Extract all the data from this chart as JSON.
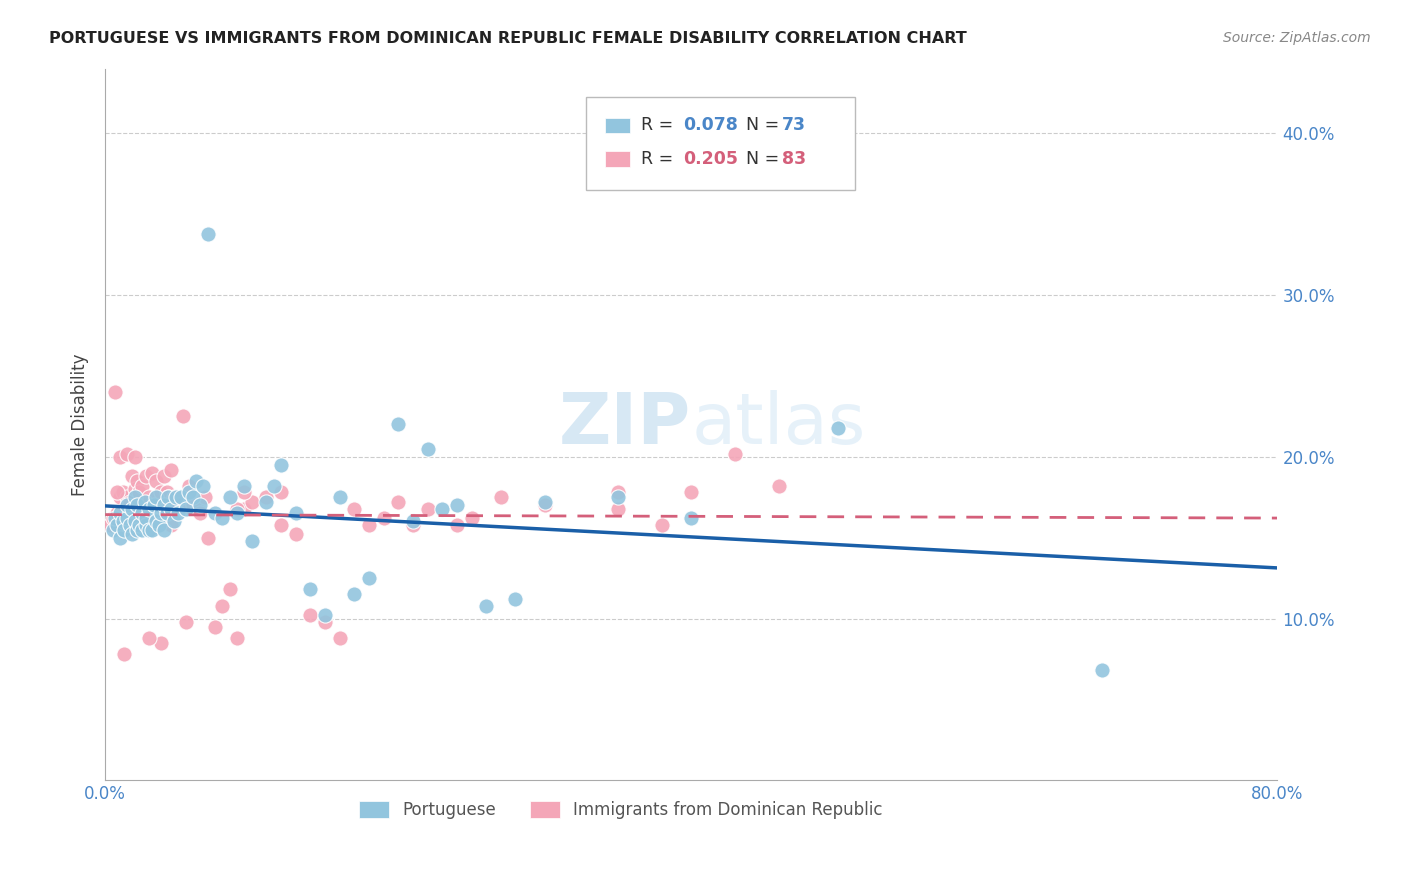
{
  "title": "PORTUGUESE VS IMMIGRANTS FROM DOMINICAN REPUBLIC FEMALE DISABILITY CORRELATION CHART",
  "source": "Source: ZipAtlas.com",
  "ylabel": "Female Disability",
  "xlim": [
    0.0,
    0.8
  ],
  "ylim": [
    0.0,
    0.44
  ],
  "yticks": [
    0.1,
    0.2,
    0.3,
    0.4
  ],
  "xticks": [
    0.0,
    0.1,
    0.2,
    0.3,
    0.4,
    0.5,
    0.6,
    0.7,
    0.8
  ],
  "xtick_labels": [
    "0.0%",
    "",
    "",
    "",
    "",
    "",
    "",
    "",
    "80.0%"
  ],
  "ytick_labels": [
    "10.0%",
    "20.0%",
    "30.0%",
    "40.0%"
  ],
  "legend1_R": "0.078",
  "legend1_N": "73",
  "legend2_R": "0.205",
  "legend2_N": "83",
  "blue_color": "#92c5de",
  "pink_color": "#f4a6b8",
  "line_blue": "#1a5fa8",
  "line_pink": "#d45f7a",
  "watermark": "ZIPatlas",
  "blue_scatter_x": [
    0.005,
    0.007,
    0.008,
    0.01,
    0.01,
    0.012,
    0.013,
    0.015,
    0.015,
    0.017,
    0.018,
    0.018,
    0.02,
    0.02,
    0.022,
    0.022,
    0.023,
    0.025,
    0.025,
    0.027,
    0.028,
    0.028,
    0.03,
    0.03,
    0.032,
    0.033,
    0.035,
    0.035,
    0.037,
    0.038,
    0.04,
    0.04,
    0.042,
    0.043,
    0.045,
    0.047,
    0.048,
    0.05,
    0.052,
    0.055,
    0.057,
    0.06,
    0.062,
    0.065,
    0.067,
    0.07,
    0.075,
    0.08,
    0.085,
    0.09,
    0.095,
    0.1,
    0.11,
    0.115,
    0.12,
    0.13,
    0.14,
    0.15,
    0.16,
    0.17,
    0.18,
    0.2,
    0.21,
    0.22,
    0.23,
    0.24,
    0.26,
    0.28,
    0.3,
    0.35,
    0.4,
    0.5,
    0.68
  ],
  "blue_scatter_y": [
    0.155,
    0.162,
    0.158,
    0.15,
    0.165,
    0.16,
    0.155,
    0.162,
    0.17,
    0.158,
    0.152,
    0.168,
    0.16,
    0.175,
    0.155,
    0.17,
    0.158,
    0.165,
    0.155,
    0.172,
    0.158,
    0.162,
    0.155,
    0.168,
    0.155,
    0.17,
    0.16,
    0.175,
    0.158,
    0.165,
    0.155,
    0.17,
    0.165,
    0.175,
    0.168,
    0.16,
    0.175,
    0.165,
    0.175,
    0.168,
    0.178,
    0.175,
    0.185,
    0.17,
    0.182,
    0.338,
    0.165,
    0.162,
    0.175,
    0.165,
    0.182,
    0.148,
    0.172,
    0.182,
    0.195,
    0.165,
    0.118,
    0.102,
    0.175,
    0.115,
    0.125,
    0.22,
    0.16,
    0.205,
    0.168,
    0.17,
    0.108,
    0.112,
    0.172,
    0.175,
    0.162,
    0.218,
    0.068
  ],
  "pink_scatter_x": [
    0.003,
    0.005,
    0.007,
    0.008,
    0.01,
    0.01,
    0.012,
    0.013,
    0.015,
    0.015,
    0.017,
    0.018,
    0.018,
    0.02,
    0.02,
    0.022,
    0.023,
    0.025,
    0.025,
    0.027,
    0.028,
    0.03,
    0.03,
    0.032,
    0.033,
    0.035,
    0.035,
    0.037,
    0.038,
    0.04,
    0.042,
    0.043,
    0.045,
    0.047,
    0.05,
    0.053,
    0.055,
    0.057,
    0.06,
    0.063,
    0.065,
    0.068,
    0.07,
    0.075,
    0.08,
    0.085,
    0.09,
    0.095,
    0.1,
    0.11,
    0.12,
    0.13,
    0.14,
    0.15,
    0.16,
    0.17,
    0.18,
    0.19,
    0.2,
    0.21,
    0.22,
    0.24,
    0.25,
    0.27,
    0.3,
    0.35,
    0.38,
    0.4,
    0.43,
    0.46,
    0.35,
    0.12,
    0.095,
    0.09,
    0.055,
    0.045,
    0.038,
    0.03,
    0.025,
    0.022,
    0.018,
    0.013,
    0.008
  ],
  "pink_scatter_y": [
    0.158,
    0.162,
    0.24,
    0.165,
    0.175,
    0.2,
    0.178,
    0.162,
    0.175,
    0.202,
    0.172,
    0.168,
    0.188,
    0.18,
    0.2,
    0.185,
    0.178,
    0.17,
    0.182,
    0.168,
    0.188,
    0.162,
    0.175,
    0.19,
    0.172,
    0.185,
    0.175,
    0.17,
    0.178,
    0.188,
    0.178,
    0.175,
    0.192,
    0.175,
    0.17,
    0.225,
    0.168,
    0.182,
    0.17,
    0.168,
    0.165,
    0.175,
    0.15,
    0.095,
    0.108,
    0.118,
    0.088,
    0.168,
    0.172,
    0.175,
    0.158,
    0.152,
    0.102,
    0.098,
    0.088,
    0.168,
    0.158,
    0.162,
    0.172,
    0.158,
    0.168,
    0.158,
    0.162,
    0.175,
    0.17,
    0.168,
    0.158,
    0.178,
    0.202,
    0.182,
    0.178,
    0.178,
    0.178,
    0.168,
    0.098,
    0.158,
    0.085,
    0.088,
    0.165,
    0.16,
    0.155,
    0.078,
    0.178
  ]
}
